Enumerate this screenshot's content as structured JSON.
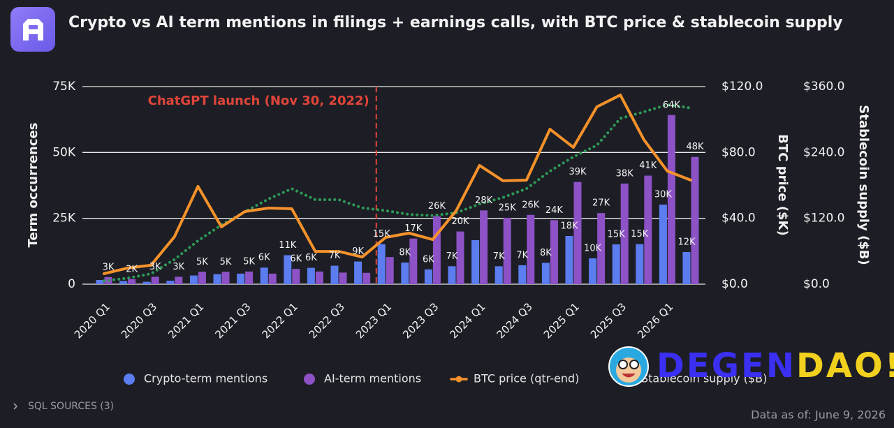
{
  "header": {
    "title": "Crypto vs AI term mentions in filings + earnings calls, with BTC price & stablecoin supply"
  },
  "chart_data": {
    "type": "bar",
    "categories": [
      "2020 Q1",
      null,
      "2020 Q3",
      null,
      "2021 Q1",
      null,
      "2021 Q3",
      null,
      "2022 Q1",
      null,
      "2022 Q3",
      null,
      "2023 Q1",
      null,
      "2023 Q3",
      null,
      "2024 Q1",
      null,
      "2024 Q3",
      null,
      "2025 Q1",
      null,
      "2025 Q3",
      null,
      "2026 Q1",
      null
    ],
    "series": [
      {
        "name": "Crypto-term mentions",
        "type": "bar",
        "color": "#5b7df0",
        "values": [
          1600,
          1200,
          900,
          1300,
          3300,
          3800,
          4000,
          6300,
          11000,
          6200,
          7000,
          8600,
          15200,
          8200,
          5600,
          6800,
          16700,
          6800,
          7200,
          8100,
          18300,
          9800,
          15100,
          15200,
          30200,
          12200
        ],
        "value_labels": [
          null,
          null,
          null,
          null,
          null,
          null,
          null,
          "6K",
          "11K",
          "6K",
          "7K",
          "9K",
          "15K",
          "8K",
          "6K",
          "7K",
          null,
          "7K",
          "7K",
          "8K",
          "18K",
          "10K",
          "15K",
          "15K",
          "30K",
          "12K"
        ]
      },
      {
        "name": "AI-term mentions",
        "type": "bar",
        "color": "#8d52c6",
        "values": [
          2700,
          1900,
          2800,
          2800,
          4700,
          4700,
          4800,
          4000,
          5800,
          4800,
          4400,
          4300,
          10300,
          17300,
          25800,
          20000,
          28000,
          25200,
          26300,
          24300,
          38800,
          27000,
          38200,
          41200,
          64200,
          48300
        ],
        "value_labels": [
          "3K",
          "2K",
          "3K",
          "3K",
          "5K",
          "5K",
          "5K",
          null,
          "6K",
          null,
          null,
          null,
          null,
          "17K",
          "26K",
          "20K",
          "28K",
          "25K",
          "26K",
          "24K",
          "39K",
          "27K",
          "38K",
          "41K",
          "64K",
          "48K"
        ]
      },
      {
        "name": "BTC price (qtr-end)",
        "type": "line",
        "axis": "y2",
        "color": "#f5922b",
        "values": [
          6.4,
          9.8,
          11.5,
          28.8,
          59.4,
          34.8,
          44.1,
          46.2,
          45.8,
          19.9,
          19.9,
          16.5,
          28.4,
          31,
          27.1,
          44.5,
          72.1,
          62.8,
          63.2,
          94.1,
          83.1,
          107.7,
          114.9,
          87.8,
          68.7,
          63.2
        ]
      },
      {
        "name": "Stablecoin supply ($B)",
        "type": "dotted-line",
        "axis": "y3",
        "color": "#2e9a57",
        "values": [
          6,
          11,
          19,
          45,
          79,
          108,
          132,
          155,
          174,
          154,
          154,
          139,
          134,
          127,
          125,
          130,
          146,
          158,
          174,
          206,
          232,
          253,
          302,
          314,
          327,
          321
        ]
      }
    ],
    "ylabel": "Term occurrences",
    "y2label": "BTC price ($K)",
    "y3label": "Stablecoin supply ($B)",
    "ylim": [
      0,
      75000
    ],
    "yticks": [
      0,
      {
        "value": 25000,
        "label": "25K"
      },
      {
        "value": 50000,
        "label": "50K"
      },
      {
        "value": 75000,
        "label": "75K"
      }
    ],
    "y2lim": [
      0,
      120
    ],
    "y2ticks": [
      {
        "value": 0,
        "label": "$0.0"
      },
      {
        "value": 40,
        "label": "$40.0"
      },
      {
        "value": 80,
        "label": "$80.0"
      },
      {
        "value": 120,
        "label": "$120.0"
      }
    ],
    "y3lim": [
      0,
      360
    ],
    "y3ticks": [
      {
        "value": 0,
        "label": "$0.0"
      },
      {
        "value": 120,
        "label": "$120.0"
      },
      {
        "value": 240,
        "label": "$240.0"
      },
      {
        "value": 360,
        "label": "$360.0"
      }
    ],
    "grid": true,
    "annotation": "ChatGPT launch (Nov 30, 2022)"
  },
  "watermark": {
    "part1": "DEGEN",
    "part2": "DAO!"
  },
  "footer": {
    "sources": "SQL SOURCES (3)",
    "as_of": "Data as of: June 9, 2026"
  }
}
